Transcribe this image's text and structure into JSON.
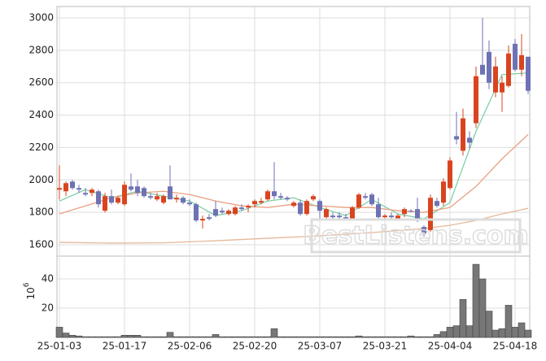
{
  "chart_data": {
    "type": "candlestick",
    "categories": [
      "25-01-03",
      null,
      null,
      null,
      null,
      null,
      null,
      null,
      null,
      null,
      "25-01-17",
      null,
      null,
      null,
      null,
      null,
      null,
      null,
      null,
      null,
      "25-02-06",
      null,
      null,
      null,
      null,
      null,
      null,
      null,
      null,
      null,
      "25-02-20",
      null,
      null,
      null,
      null,
      null,
      null,
      null,
      null,
      null,
      "25-03-07",
      null,
      null,
      null,
      null,
      null,
      null,
      null,
      null,
      null,
      "25-03-21",
      null,
      null,
      null,
      null,
      null,
      null,
      null,
      null,
      null,
      "25-04-04",
      null,
      null,
      null,
      null,
      null,
      null,
      null,
      null,
      null,
      "25-04-18",
      null,
      null
    ],
    "open": [
      1940,
      1930,
      1990,
      1950,
      1920,
      1920,
      1930,
      1810,
      1900,
      1860,
      1850,
      1960,
      1960,
      1950,
      1900,
      1880,
      1860,
      1960,
      1880,
      1890,
      1860,
      1850,
      1750,
      1770,
      1820,
      1810,
      1790,
      1790,
      1830,
      1830,
      1850,
      1860,
      1880,
      1930,
      1900,
      1890,
      1840,
      1860,
      1790,
      1880,
      1870,
      1770,
      1780,
      1780,
      1770,
      1760,
      1830,
      1900,
      1910,
      1850,
      1770,
      1780,
      1760,
      1790,
      1810,
      1820,
      1710,
      1690,
      1870,
      1860,
      1950,
      2270,
      2180,
      2260,
      2350,
      2710,
      2790,
      2540,
      2540,
      2580,
      2840,
      2680,
      2760
    ],
    "high": [
      2090,
      1990,
      2000,
      1970,
      1950,
      1950,
      1940,
      1920,
      1940,
      1900,
      1990,
      2040,
      2000,
      1960,
      1920,
      1920,
      1910,
      2090,
      1910,
      1900,
      1880,
      1860,
      1780,
      1790,
      1870,
      1830,
      1820,
      1840,
      1850,
      1850,
      1880,
      1890,
      1940,
      2110,
      1920,
      1900,
      1870,
      1880,
      1880,
      1910,
      1880,
      1830,
      1800,
      1800,
      1790,
      1840,
      1920,
      1920,
      1920,
      1890,
      1790,
      1800,
      1790,
      1830,
      1820,
      1890,
      1720,
      1910,
      1890,
      2010,
      2140,
      2420,
      2440,
      2300,
      2700,
      3000,
      2860,
      2760,
      2640,
      2830,
      2870,
      2900,
      2760
    ],
    "low": [
      1880,
      1900,
      1940,
      1920,
      1900,
      1900,
      1830,
      1800,
      1850,
      1850,
      1840,
      1930,
      1900,
      1890,
      1880,
      1870,
      1850,
      1880,
      1860,
      1850,
      1840,
      1740,
      1700,
      1750,
      1770,
      1790,
      1780,
      1780,
      1810,
      1800,
      1830,
      1850,
      1870,
      1880,
      1880,
      1870,
      1830,
      1780,
      1780,
      1870,
      1760,
      1760,
      1750,
      1760,
      1750,
      1750,
      1820,
      1880,
      1840,
      1760,
      1750,
      1760,
      1750,
      1770,
      1800,
      1740,
      1650,
      1680,
      1830,
      1840,
      1940,
      2220,
      2150,
      2190,
      2320,
      2650,
      2560,
      2510,
      2420,
      2570,
      2670,
      2640,
      2530
    ],
    "close": [
      1950,
      1980,
      1950,
      1940,
      1910,
      1940,
      1850,
      1900,
      1860,
      1890,
      1970,
      1940,
      1920,
      1900,
      1890,
      1900,
      1900,
      1880,
      1890,
      1860,
      1850,
      1750,
      1760,
      1760,
      1780,
      1800,
      1810,
      1830,
      1820,
      1840,
      1870,
      1870,
      1930,
      1900,
      1890,
      1880,
      1860,
      1790,
      1870,
      1900,
      1810,
      1820,
      1770,
      1770,
      1760,
      1830,
      1910,
      1890,
      1850,
      1770,
      1780,
      1770,
      1780,
      1820,
      1805,
      1750,
      1670,
      1890,
      1840,
      1990,
      2120,
      2250,
      2380,
      2230,
      2640,
      2650,
      2600,
      2700,
      2600,
      2780,
      2680,
      2770,
      2550
    ],
    "up_color": "#d9441f",
    "down_color": "#6e72b4",
    "ylim": [
      1530,
      3070
    ],
    "yticks": [
      1600,
      1800,
      2000,
      2200,
      2400,
      2600,
      2800,
      3000
    ],
    "grid": true,
    "lines": [
      {
        "color": "#7fcfa8",
        "x": [
          0,
          4,
          8,
          12,
          16,
          20,
          24,
          28,
          32,
          36,
          40,
          44,
          48,
          52,
          56,
          60,
          64,
          68,
          72
        ],
        "values": [
          1870,
          1940,
          1890,
          1930,
          1900,
          1870,
          1780,
          1810,
          1870,
          1890,
          1830,
          1780,
          1880,
          1790,
          1760,
          1860,
          2300,
          2650,
          2660
        ]
      },
      {
        "color": "#e8a080",
        "x": [
          0,
          4,
          8,
          12,
          16,
          20,
          24,
          28,
          32,
          36,
          40,
          44,
          48,
          52,
          56,
          60,
          64,
          68,
          72
        ],
        "values": [
          1790,
          1840,
          1890,
          1920,
          1930,
          1910,
          1870,
          1840,
          1830,
          1850,
          1840,
          1830,
          1830,
          1810,
          1800,
          1830,
          1960,
          2130,
          2280
        ]
      },
      {
        "color": "#e6b898",
        "x": [
          0,
          8,
          16,
          24,
          32,
          40,
          48,
          56,
          60,
          64,
          68,
          72
        ],
        "values": [
          1615,
          1610,
          1612,
          1625,
          1640,
          1655,
          1675,
          1700,
          1720,
          1750,
          1790,
          1825
        ]
      }
    ],
    "volume": {
      "type": "bar",
      "values": [
        7,
        3,
        1.5,
        1,
        0.5,
        0.5,
        0.5,
        0.5,
        0.5,
        0.5,
        1.5,
        1.5,
        1.5,
        0.5,
        0.5,
        0.5,
        0.5,
        3.5,
        0.5,
        0.5,
        0.5,
        0.5,
        0.5,
        0.5,
        2,
        0.5,
        0.5,
        0.5,
        0.5,
        0.5,
        0.5,
        0.5,
        0.5,
        6,
        0.5,
        0.5,
        0.5,
        0.5,
        0.5,
        0.5,
        0.5,
        0.5,
        0.5,
        0.5,
        0.5,
        0.5,
        1,
        0.5,
        0.5,
        0.5,
        0.5,
        0.5,
        0.5,
        0.5,
        1,
        0.5,
        0.5,
        0.5,
        2,
        4,
        7,
        8,
        26,
        8,
        50,
        40,
        18,
        5,
        6,
        22,
        7,
        10,
        5
      ],
      "color": "#777777",
      "ylim": [
        0,
        55.6
      ],
      "yticks": [
        20,
        40
      ],
      "unit_base": "10",
      "unit_exponent": "6"
    },
    "watermark": "BestListens.com"
  }
}
